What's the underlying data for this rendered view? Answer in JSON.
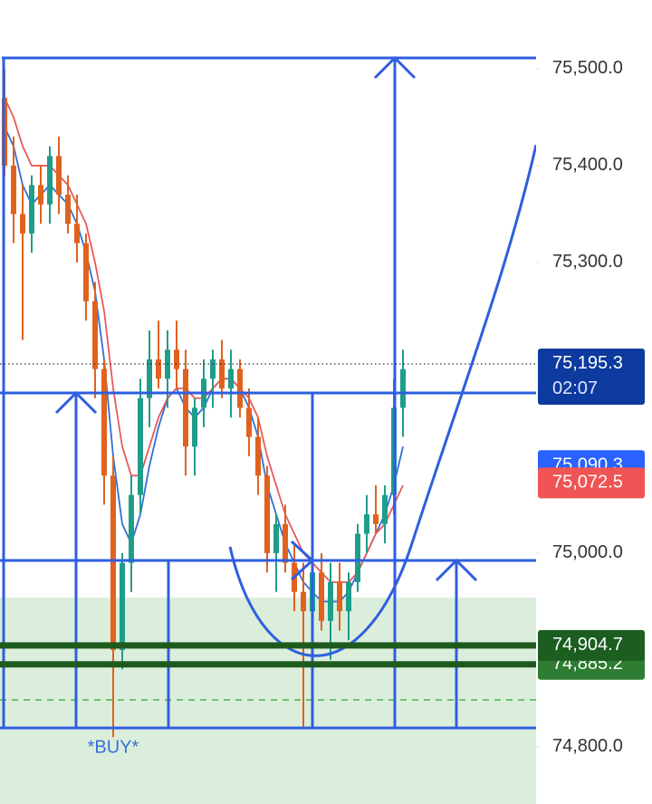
{
  "chart_data": {
    "type": "candlestick",
    "ylim": [
      74741,
      75571
    ],
    "yticks": [
      {
        "value": 75500,
        "label": "75,500.0"
      },
      {
        "value": 75400,
        "label": "75,400.0"
      },
      {
        "value": 75300,
        "label": "75,300.0"
      },
      {
        "value": 75000,
        "label": "75,000.0"
      },
      {
        "value": 74800,
        "label": "74,800.0"
      }
    ],
    "up_color": "#1f9d8b",
    "down_color": "#e0621e",
    "candles": [
      [
        75470,
        75500,
        75390,
        75400
      ],
      [
        75400,
        75430,
        75320,
        75350
      ],
      [
        75350,
        75380,
        75220,
        75330
      ],
      [
        75330,
        75390,
        75310,
        75380
      ],
      [
        75380,
        75400,
        75340,
        75360
      ],
      [
        75360,
        75420,
        75340,
        75410
      ],
      [
        75410,
        75430,
        75350,
        75370
      ],
      [
        75370,
        75390,
        75330,
        75340
      ],
      [
        75340,
        75370,
        75300,
        75320
      ],
      [
        75320,
        75330,
        75240,
        75260
      ],
      [
        75260,
        75280,
        75160,
        75190
      ],
      [
        75190,
        75200,
        75050,
        75080
      ],
      [
        75080,
        75100,
        74810,
        74900
      ],
      [
        74900,
        75000,
        74880,
        74990
      ],
      [
        74990,
        75080,
        74960,
        75060
      ],
      [
        75060,
        75180,
        75040,
        75160
      ],
      [
        75160,
        75230,
        75130,
        75200
      ],
      [
        75200,
        75240,
        75170,
        75180
      ],
      [
        75180,
        75230,
        75150,
        75210
      ],
      [
        75210,
        75240,
        75170,
        75190
      ],
      [
        75190,
        75210,
        75080,
        75110
      ],
      [
        75110,
        75160,
        75080,
        75150
      ],
      [
        75150,
        75200,
        75130,
        75180
      ],
      [
        75180,
        75210,
        75150,
        75200
      ],
      [
        75200,
        75220,
        75160,
        75170
      ],
      [
        75170,
        75210,
        75140,
        75190
      ],
      [
        75190,
        75200,
        75140,
        75150
      ],
      [
        75150,
        75170,
        75100,
        75120
      ],
      [
        75120,
        75140,
        75060,
        75080
      ],
      [
        75080,
        75090,
        74980,
        75000
      ],
      [
        75000,
        75040,
        74960,
        75030
      ],
      [
        75030,
        75050,
        74980,
        74990
      ],
      [
        74990,
        75010,
        74940,
        74960
      ],
      [
        74960,
        74990,
        74820,
        74940
      ],
      [
        74940,
        74990,
        74900,
        74980
      ],
      [
        74980,
        75000,
        74920,
        74930
      ],
      [
        74930,
        74990,
        74890,
        74970
      ],
      [
        74970,
        74990,
        74920,
        74940
      ],
      [
        74940,
        74980,
        74910,
        74970
      ],
      [
        74970,
        75030,
        74960,
        75020
      ],
      [
        75020,
        75060,
        75000,
        75040
      ],
      [
        75040,
        75070,
        75020,
        75030
      ],
      [
        75030,
        75070,
        75010,
        75060
      ],
      [
        75060,
        75180,
        75040,
        75150
      ],
      [
        75150,
        75210,
        75120,
        75190
      ]
    ],
    "series": [
      {
        "color": "#2f6fd6",
        "values": [
          75440,
          75420,
          75380,
          75360,
          75370,
          75380,
          75370,
          75360,
          75340,
          75310,
          75270,
          75200,
          75100,
          75030,
          75010,
          75040,
          75090,
          75130,
          75160,
          75170,
          75150,
          75140,
          75150,
          75170,
          75180,
          75180,
          75170,
          75150,
          75120,
          75070,
          75040,
          75010,
          74990,
          74970,
          74960,
          74950,
          74950,
          74950,
          74960,
          74980,
          75000,
          75020,
          75040,
          75070,
          75110
        ]
      },
      {
        "color": "#e85a5a",
        "values": [
          75470,
          75450,
          75420,
          75400,
          75400,
          75400,
          75390,
          75380,
          75360,
          75340,
          75300,
          75250,
          75170,
          75110,
          75080,
          75080,
          75110,
          75140,
          75160,
          75170,
          75170,
          75160,
          75160,
          75170,
          75180,
          75180,
          75170,
          75160,
          75140,
          75100,
          75070,
          75040,
          75020,
          75000,
          74990,
          74980,
          74970,
          74970,
          74970,
          74980,
          75000,
          75020,
          75030,
          75050,
          75070
        ]
      }
    ],
    "price_tags": [
      {
        "value": 75090.3,
        "label": "75,090.3",
        "color": "#2962ff"
      },
      {
        "value": 75072.5,
        "label": "75,072.5",
        "color": "#f05454"
      },
      {
        "value": 74885.2,
        "label": "74,885.2",
        "color": "#2e7d32"
      },
      {
        "value": 74904.7,
        "label": "74,904.7",
        "color": "#1b5e20"
      },
      {
        "value": 75195.3,
        "label": "75,195.3",
        "countdown": "02:07",
        "color": "#0d3a9e"
      }
    ],
    "annotation": "*BUY*"
  }
}
